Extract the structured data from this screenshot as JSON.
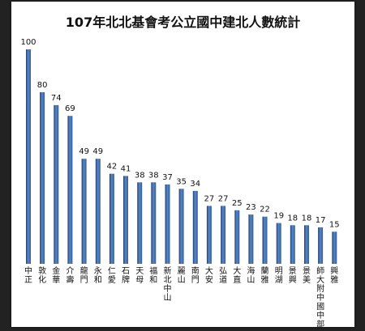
{
  "chart_data": {
    "type": "bar",
    "title": "107年北北基會考公立國中建北人數統計",
    "categories": [
      "中正",
      "敦化",
      "金華",
      "介壽",
      "龍門",
      "永和",
      "仁愛",
      "石牌",
      "天母",
      "福和",
      "新北中山",
      "麗山",
      "南門",
      "大安",
      "弘道",
      "大直",
      "海山",
      "蘭雅",
      "明湖",
      "景興",
      "景美",
      "師大附中國中部",
      "興雅"
    ],
    "values": [
      100,
      80,
      74,
      69,
      49,
      49,
      42,
      41,
      38,
      38,
      37,
      35,
      34,
      27,
      27,
      25,
      23,
      22,
      19,
      18,
      18,
      17,
      15
    ],
    "ylim": [
      0,
      100
    ],
    "grid": false,
    "legend": false,
    "colors": {
      "bar": "#2f5f9e",
      "bar_edge": "#1f4175",
      "bar_highlight": "#5b86c4"
    }
  }
}
